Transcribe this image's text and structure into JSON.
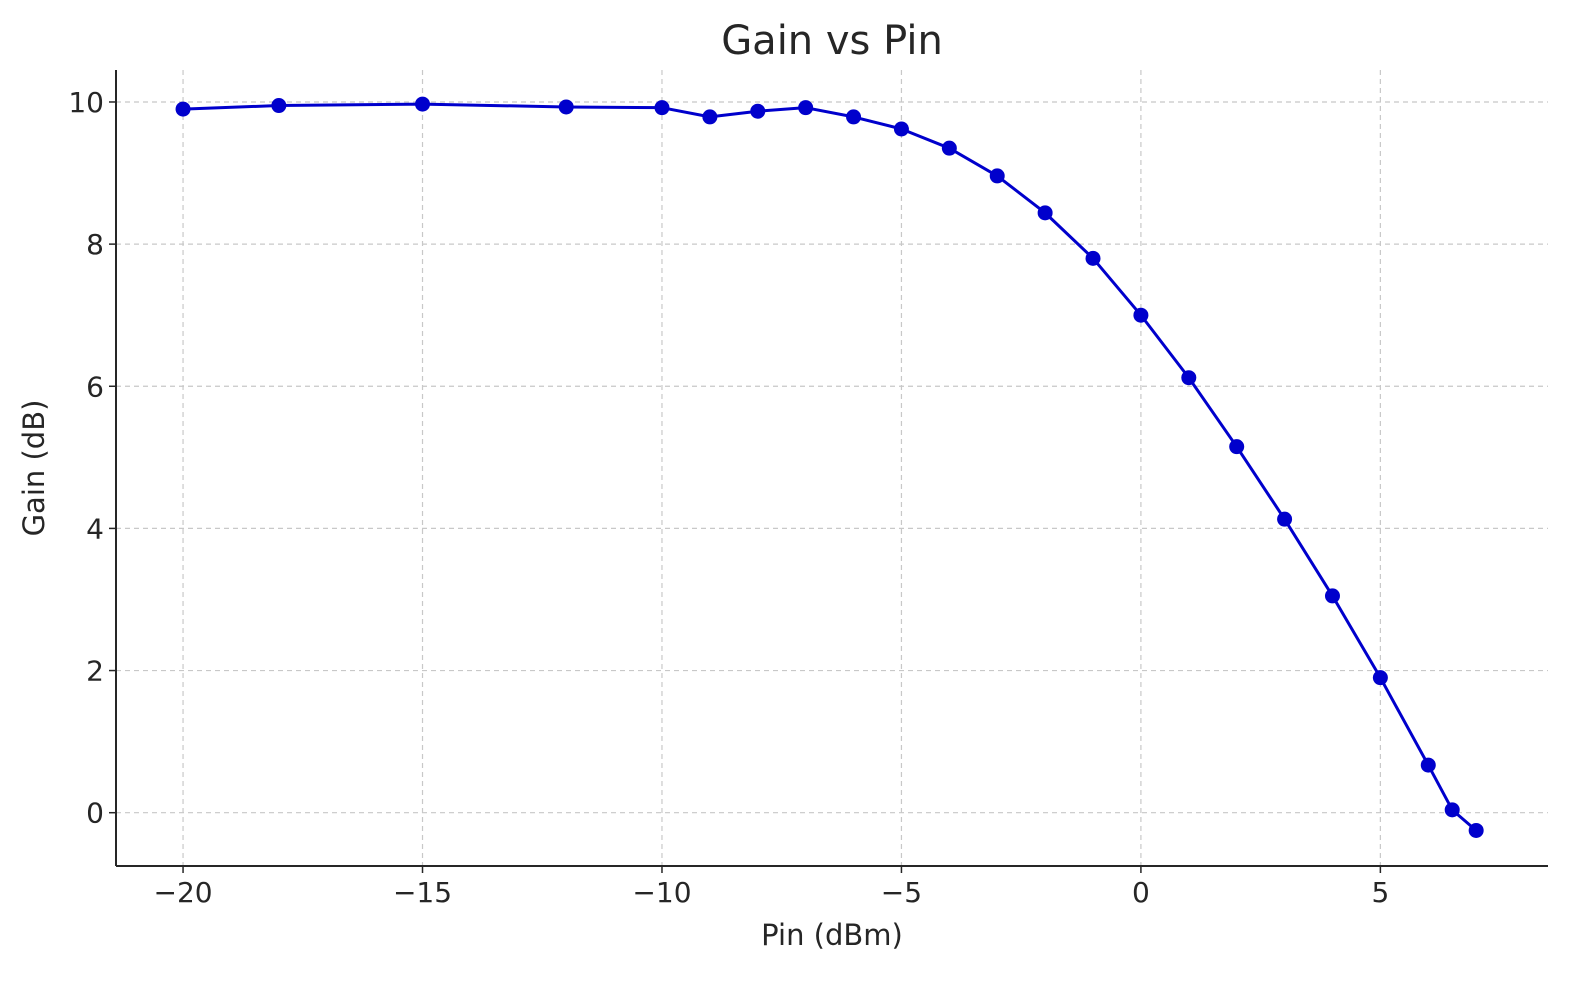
{
  "chart_data": {
    "type": "line",
    "title": "Gain vs Pin",
    "xlabel": "Pin (dBm)",
    "ylabel": "Gain (dB)",
    "xlim": [
      -21.4,
      8.5
    ],
    "ylim": [
      -0.75,
      10.45
    ],
    "xticks": [
      -20,
      -15,
      -10,
      -5,
      0,
      5
    ],
    "xtick_labels": [
      "−20",
      "−15",
      "−10",
      "−5",
      "0",
      "5"
    ],
    "yticks": [
      0,
      2,
      4,
      6,
      8,
      10
    ],
    "ytick_labels": [
      "0",
      "2",
      "4",
      "6",
      "8",
      "10"
    ],
    "grid": true,
    "grid_style": "dashed",
    "series": [
      {
        "color": "#0000cc",
        "marker": "circle",
        "x": [
          -20,
          -18,
          -15,
          -12,
          -10,
          -9,
          -8,
          -7,
          -6,
          -5,
          -4,
          -3,
          -2,
          -1,
          0,
          1,
          2,
          3,
          4,
          5,
          6,
          6.5,
          7
        ],
        "y": [
          9.9,
          9.95,
          9.97,
          9.93,
          9.92,
          9.79,
          9.87,
          9.92,
          9.79,
          9.62,
          9.35,
          8.96,
          8.44,
          7.8,
          7.0,
          6.12,
          5.15,
          4.13,
          3.05,
          1.9,
          0.67,
          0.04,
          -0.25
        ]
      }
    ]
  }
}
